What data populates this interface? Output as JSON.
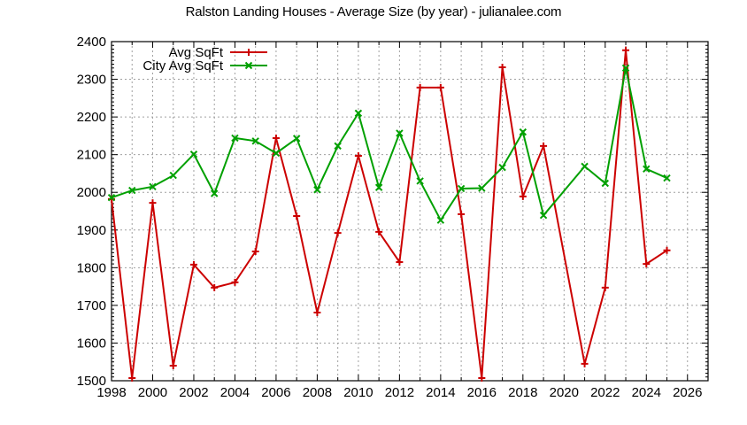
{
  "title": "Ralston Landing Houses - Average Size (by year) - julianalee.com",
  "colors": {
    "avg": "#cc0000",
    "city": "#00a000",
    "grid": "#a0a0a0",
    "axis": "#000000"
  },
  "legend": [
    {
      "label": "Avg SqFt",
      "color": "#cc0000",
      "marker": "plus"
    },
    {
      "label": "City Avg SqFt",
      "color": "#00a000",
      "marker": "x"
    }
  ],
  "chart_data": {
    "type": "line",
    "title": "Ralston Landing Houses - Average Size (by year) - julianalee.com",
    "xlabel": "",
    "ylabel": "",
    "xlim": [
      1998,
      2027
    ],
    "ylim": [
      1500,
      2400
    ],
    "x_ticks": [
      1998,
      2000,
      2002,
      2004,
      2006,
      2008,
      2010,
      2012,
      2014,
      2016,
      2018,
      2020,
      2022,
      2024,
      2026
    ],
    "y_ticks": [
      1500,
      1600,
      1700,
      1800,
      1900,
      2000,
      2100,
      2200,
      2300,
      2400
    ],
    "grid": true,
    "legend_position": "top-left inside",
    "series": [
      {
        "name": "Avg SqFt",
        "color": "#cc0000",
        "marker": "plus",
        "x": [
          1998,
          1999,
          2000,
          2001,
          2002,
          2003,
          2004,
          2005,
          2006,
          2007,
          2008,
          2009,
          2010,
          2011,
          2012,
          2013,
          2014,
          2015,
          2016,
          2017,
          2018,
          2019,
          2021,
          2022,
          2023,
          2024,
          2025
        ],
        "values": [
          1982,
          1507,
          1972,
          1540,
          1808,
          1747,
          1761,
          1843,
          2144,
          1937,
          1681,
          1892,
          2097,
          1895,
          1815,
          2278,
          2278,
          1942,
          1507,
          2332,
          1989,
          2123,
          1545,
          1747,
          2377,
          1810,
          1846
        ]
      },
      {
        "name": "City Avg SqFt",
        "color": "#00a000",
        "marker": "x",
        "x": [
          1998,
          1999,
          2000,
          2001,
          2002,
          2003,
          2004,
          2005,
          2006,
          2007,
          2008,
          2009,
          2010,
          2011,
          2012,
          2013,
          2014,
          2015,
          2016,
          2017,
          2018,
          2019,
          2021,
          2022,
          2023,
          2024,
          2025
        ],
        "values": [
          1986,
          2005,
          2015,
          2045,
          2101,
          1997,
          2144,
          2136,
          2104,
          2143,
          2007,
          2123,
          2210,
          2013,
          2157,
          2030,
          1926,
          2010,
          2011,
          2066,
          2160,
          1939,
          2069,
          2024,
          2330,
          2062,
          2038
        ]
      }
    ]
  }
}
